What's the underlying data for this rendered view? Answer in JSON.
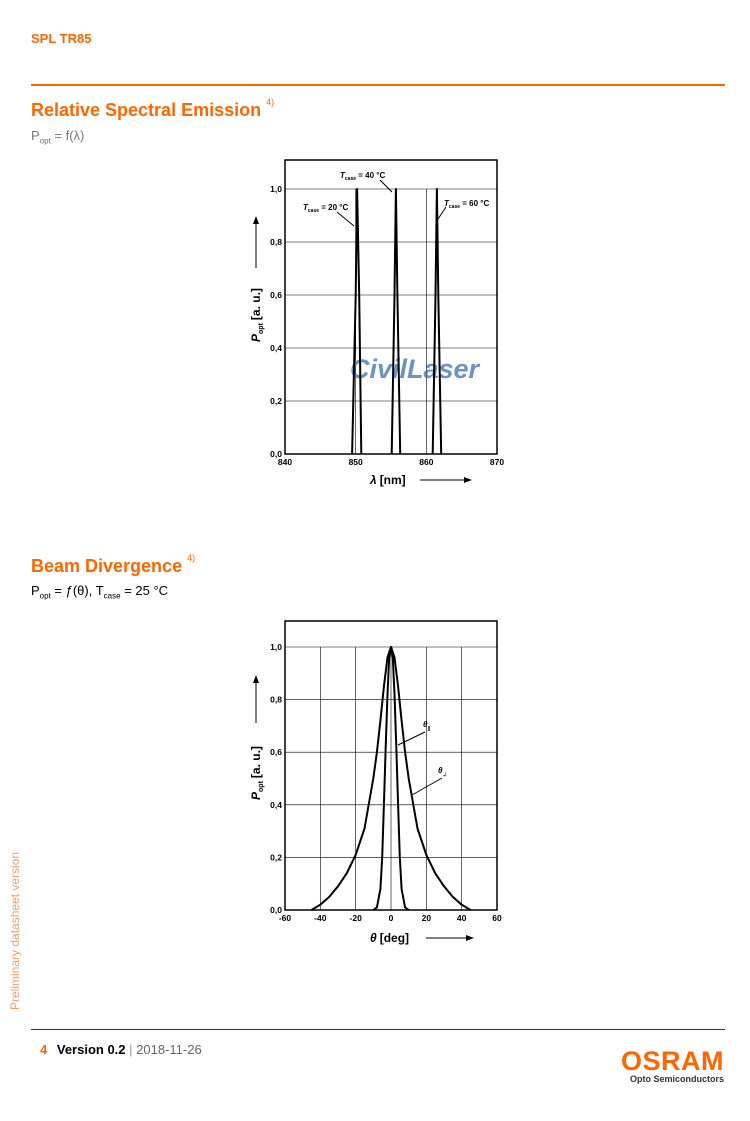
{
  "header": {
    "product": "SPL TR85"
  },
  "sections": {
    "spectral": {
      "title": "Relative Spectral Emission",
      "note": "4)",
      "formula": {
        "p": "P",
        "p_sub": "opt",
        "rest": " = f(λ)"
      }
    },
    "beam": {
      "title": "Beam Divergence",
      "note": "4)",
      "formula": {
        "p": "P",
        "p_sub": "opt",
        "mid": " = ƒ(θ), T",
        "t_sub": "case",
        "rest": " = 25 °C"
      }
    }
  },
  "watermark": "CivilLaser",
  "side_note": "Preliminary datasheet version",
  "footer": {
    "page": "4",
    "version": "Version 0.2",
    "separator": "|",
    "date": "2018-11-26"
  },
  "logo": {
    "name": "OSRAM",
    "sub": "Opto Semiconductors"
  },
  "colors": {
    "accent": "#ff6600",
    "watermark_blue": "#3a6fb0"
  },
  "chart_data": [
    {
      "type": "line",
      "xlabel_symbol": "λ",
      "xlabel_unit": "[nm]",
      "ylabel_symbol": "P",
      "ylabel_sub": "opt",
      "ylabel_unit": "[a. u.]",
      "xlim": [
        840,
        870
      ],
      "ylim": [
        0,
        1.0
      ],
      "x_ticks": [
        "840",
        "850",
        "860",
        "870"
      ],
      "y_ticks": [
        "0,0",
        "0,2",
        "0,4",
        "0,6",
        "0,8",
        "1,0"
      ],
      "grid": true,
      "series": [
        {
          "label_t": "T",
          "label_sub": "case",
          "label_val": " = 20 °C",
          "x": [
            849.5,
            850.0,
            850.2,
            850.5,
            850.8
          ],
          "y": [
            0,
            0.6,
            1.0,
            0.6,
            0
          ]
        },
        {
          "label_t": "T",
          "label_sub": "case",
          "label_val": " = 40 °C",
          "x": [
            855.1,
            855.5,
            855.7,
            855.9,
            856.3
          ],
          "y": [
            0,
            0.6,
            1.0,
            0.6,
            0
          ]
        },
        {
          "label_t": "T",
          "label_sub": "case",
          "label_val": " = 60 °C",
          "x": [
            860.9,
            861.3,
            861.5,
            861.7,
            862.1
          ],
          "y": [
            0,
            0.6,
            1.0,
            0.6,
            0
          ]
        }
      ]
    },
    {
      "type": "line",
      "xlabel_symbol": "θ",
      "xlabel_unit": "[deg]",
      "ylabel_symbol": "P",
      "ylabel_sub": "opt",
      "ylabel_unit": "[a. u.]",
      "xlim": [
        -60,
        60
      ],
      "ylim": [
        0,
        1.0
      ],
      "x_ticks": [
        "-60",
        "-40",
        "-20",
        "0",
        "20",
        "40",
        "60"
      ],
      "y_ticks": [
        "0,0",
        "0,2",
        "0,4",
        "0,6",
        "0,8",
        "1,0"
      ],
      "grid": true,
      "series": [
        {
          "label": "θ",
          "label_sub": "||",
          "x": [
            -10,
            -8,
            -6,
            -5,
            -4,
            -3,
            -2,
            -1,
            0,
            1,
            2,
            3,
            4,
            5,
            6,
            8,
            10
          ],
          "y": [
            0.0,
            0.01,
            0.08,
            0.2,
            0.4,
            0.62,
            0.82,
            0.96,
            1.0,
            0.96,
            0.82,
            0.62,
            0.4,
            0.2,
            0.08,
            0.01,
            0.0
          ]
        },
        {
          "label": "θ",
          "label_sub": "⊥",
          "x": [
            -45,
            -40,
            -35,
            -30,
            -25,
            -20,
            -15,
            -10,
            -8,
            -6,
            -4,
            -2,
            0,
            2,
            4,
            6,
            8,
            10,
            15,
            20,
            25,
            30,
            35,
            40,
            45
          ],
          "y": [
            0.0,
            0.02,
            0.05,
            0.09,
            0.14,
            0.21,
            0.31,
            0.5,
            0.6,
            0.72,
            0.85,
            0.96,
            1.0,
            0.96,
            0.85,
            0.72,
            0.6,
            0.5,
            0.31,
            0.21,
            0.14,
            0.09,
            0.05,
            0.02,
            0.0
          ]
        }
      ]
    }
  ]
}
